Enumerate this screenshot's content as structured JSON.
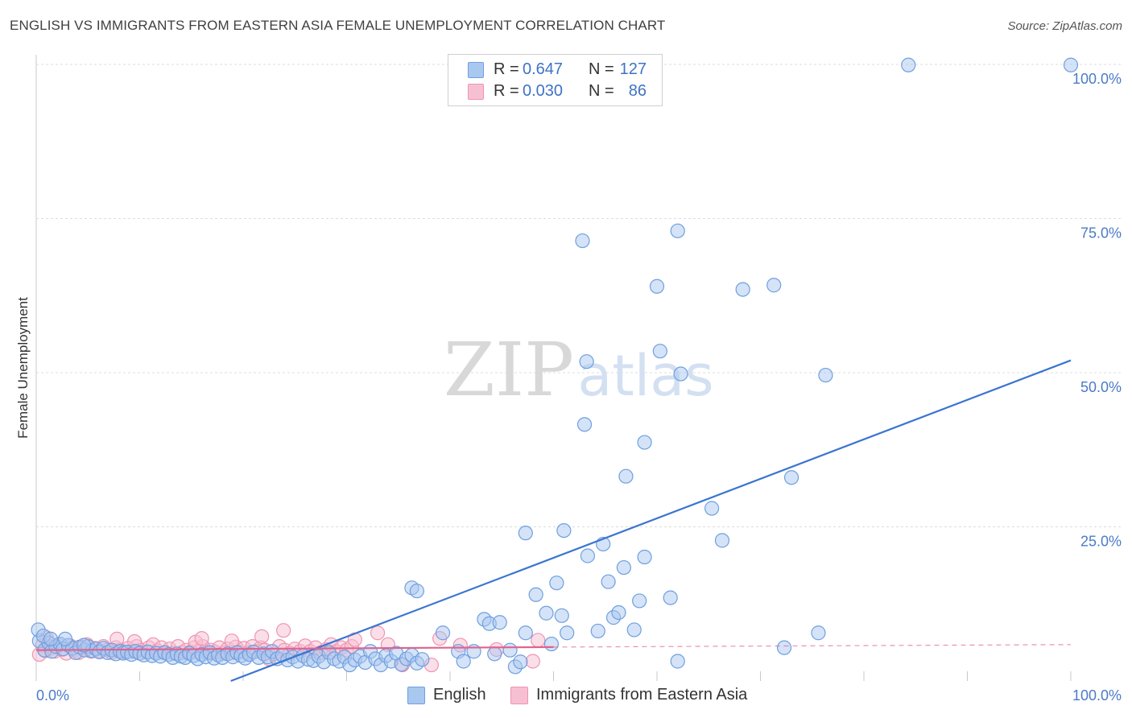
{
  "title": "ENGLISH VS IMMIGRANTS FROM EASTERN ASIA FEMALE UNEMPLOYMENT CORRELATION CHART",
  "source": "Source: ZipAtlas.com",
  "watermark": {
    "zip": "ZIP",
    "atlas": "atlas"
  },
  "legend": {
    "english": {
      "r_label": "R =",
      "r_value": "0.647",
      "n_label": "N =",
      "n_value": "127"
    },
    "immigrants": {
      "r_label": "R =",
      "r_value": "0.030",
      "n_label": "N =",
      "n_value": "86"
    }
  },
  "bottom_legend": {
    "english": "English",
    "immigrants": "Immigrants from Eastern Asia"
  },
  "colors": {
    "english_fill": "#a9c8f0",
    "english_stroke": "#6f9fe0",
    "english_line": "#3a75d0",
    "immigrants_fill": "#f7c0d2",
    "immigrants_stroke": "#ee94b2",
    "immigrants_line": "#e0628e",
    "grid": "#dcdcdc",
    "tick_text": "#4a7bc8"
  },
  "chart_data": {
    "type": "scatter",
    "title": "ENGLISH VS IMMIGRANTS FROM EASTERN ASIA FEMALE UNEMPLOYMENT CORRELATION CHART",
    "xlabel": "",
    "ylabel": "Female Unemployment",
    "xlim": [
      0,
      100
    ],
    "ylim": [
      0,
      100
    ],
    "x_tick_labels": [
      {
        "value": 0,
        "label": "0.0%"
      },
      {
        "value": 100,
        "label": "100.0%"
      }
    ],
    "y_tick_labels": [
      {
        "value": 25,
        "label": "25.0%"
      },
      {
        "value": 50,
        "label": "50.0%"
      },
      {
        "value": 75,
        "label": "75.0%"
      },
      {
        "value": 100,
        "label": "100.0%"
      }
    ],
    "grid": true,
    "series": [
      {
        "name": "English",
        "trendline": {
          "x": [
            11,
            100
          ],
          "y": [
            -5,
            52
          ]
        },
        "points": [
          [
            0.3,
            6.5
          ],
          [
            0.8,
            5.0
          ],
          [
            1.2,
            6.2
          ],
          [
            1.5,
            4.8
          ],
          [
            1.9,
            5.6
          ],
          [
            2.3,
            6.0
          ],
          [
            2.6,
            5.2
          ],
          [
            3.1,
            5.8
          ],
          [
            3.5,
            5.3
          ],
          [
            3.8,
            4.6
          ],
          [
            4.2,
            5.5
          ],
          [
            4.7,
            5.0
          ],
          [
            5.0,
            5.6
          ],
          [
            5.4,
            4.9
          ],
          [
            5.8,
            5.2
          ],
          [
            6.1,
            4.7
          ],
          [
            6.5,
            5.3
          ],
          [
            6.9,
            4.6
          ],
          [
            7.3,
            5.0
          ],
          [
            7.7,
            4.4
          ],
          [
            8.1,
            4.8
          ],
          [
            8.4,
            4.5
          ],
          [
            8.8,
            4.7
          ],
          [
            9.2,
            4.3
          ],
          [
            9.6,
            4.8
          ],
          [
            10.0,
            4.5
          ],
          [
            10.4,
            4.2
          ],
          [
            10.8,
            4.7
          ],
          [
            11.2,
            4.1
          ],
          [
            11.6,
            4.5
          ],
          [
            12.0,
            4.0
          ],
          [
            12.4,
            4.6
          ],
          [
            12.8,
            4.3
          ],
          [
            13.2,
            3.8
          ],
          [
            13.6,
            4.4
          ],
          [
            14.0,
            4.0
          ],
          [
            14.4,
            3.8
          ],
          [
            14.8,
            4.5
          ],
          [
            15.2,
            4.1
          ],
          [
            15.6,
            3.6
          ],
          [
            16.0,
            4.3
          ],
          [
            16.4,
            3.9
          ],
          [
            16.8,
            4.6
          ],
          [
            17.2,
            3.7
          ],
          [
            17.6,
            4.2
          ],
          [
            18.0,
            3.8
          ],
          [
            18.5,
            4.4
          ],
          [
            19.0,
            3.9
          ],
          [
            19.4,
            4.6
          ],
          [
            19.8,
            4.1
          ],
          [
            20.2,
            3.7
          ],
          [
            20.6,
            4.3
          ],
          [
            21.0,
            4.7
          ],
          [
            21.5,
            3.8
          ],
          [
            22.0,
            4.4
          ],
          [
            22.4,
            3.9
          ],
          [
            22.8,
            4.8
          ],
          [
            23.3,
            3.6
          ],
          [
            23.8,
            4.2
          ],
          [
            24.3,
            3.4
          ],
          [
            24.8,
            3.9
          ],
          [
            25.3,
            3.2
          ],
          [
            25.8,
            4.1
          ],
          [
            26.3,
            3.5
          ],
          [
            26.8,
            3.3
          ],
          [
            27.3,
            4.0
          ],
          [
            27.8,
            3.1
          ],
          [
            28.3,
            4.6
          ],
          [
            28.8,
            3.6
          ],
          [
            29.3,
            3.2
          ],
          [
            29.8,
            3.9
          ],
          [
            30.3,
            2.6
          ],
          [
            30.8,
            3.4
          ],
          [
            31.3,
            4.0
          ],
          [
            31.8,
            3.0
          ],
          [
            32.3,
            4.8
          ],
          [
            32.8,
            3.6
          ],
          [
            33.3,
            2.6
          ],
          [
            33.8,
            4.1
          ],
          [
            34.3,
            3.2
          ],
          [
            34.8,
            4.5
          ],
          [
            35.3,
            2.7
          ],
          [
            35.8,
            3.6
          ],
          [
            36.3,
            4.2
          ],
          [
            36.8,
            2.9
          ],
          [
            37.3,
            3.5
          ],
          [
            0.2,
            8.3
          ],
          [
            0.7,
            7.3
          ],
          [
            1.4,
            6.8
          ],
          [
            2.8,
            6.8
          ],
          [
            4.6,
            5.8
          ],
          [
            36.3,
            15.1
          ],
          [
            36.8,
            14.6
          ],
          [
            39.3,
            7.8
          ],
          [
            40.8,
            4.8
          ],
          [
            41.3,
            3.2
          ],
          [
            42.3,
            4.8
          ],
          [
            43.3,
            10.0
          ],
          [
            43.8,
            9.3
          ],
          [
            44.3,
            4.4
          ],
          [
            44.8,
            9.5
          ],
          [
            45.8,
            5.0
          ],
          [
            46.3,
            2.3
          ],
          [
            46.8,
            3.1
          ],
          [
            47.3,
            7.8
          ],
          [
            48.3,
            14.0
          ],
          [
            49.3,
            11.0
          ],
          [
            49.8,
            6.0
          ],
          [
            50.3,
            15.9
          ],
          [
            50.8,
            10.6
          ],
          [
            51.3,
            7.8
          ],
          [
            53.3,
            20.3
          ],
          [
            54.3,
            8.1
          ],
          [
            55.3,
            16.1
          ],
          [
            55.8,
            10.3
          ],
          [
            56.3,
            11.1
          ],
          [
            57.8,
            8.3
          ],
          [
            58.3,
            13.0
          ],
          [
            58.8,
            20.1
          ],
          [
            56.8,
            18.4
          ],
          [
            54.8,
            22.2
          ],
          [
            47.3,
            24.0
          ],
          [
            51.0,
            24.4
          ],
          [
            57.0,
            33.2
          ],
          [
            58.8,
            38.7
          ],
          [
            60.0,
            64.0
          ],
          [
            53.0,
            41.6
          ],
          [
            53.2,
            51.8
          ],
          [
            52.8,
            71.4
          ],
          [
            60.3,
            53.5
          ],
          [
            62.3,
            49.8
          ],
          [
            62.0,
            73.0
          ],
          [
            61.3,
            13.5
          ],
          [
            62.0,
            3.2
          ],
          [
            65.3,
            28.0
          ],
          [
            66.3,
            22.8
          ],
          [
            68.3,
            63.5
          ],
          [
            71.3,
            64.2
          ],
          [
            73.0,
            33.0
          ],
          [
            72.3,
            5.4
          ],
          [
            76.3,
            49.6
          ],
          [
            75.6,
            7.8
          ],
          [
            84.3,
            99.9
          ],
          [
            100.0,
            99.9
          ]
        ]
      },
      {
        "name": "Immigrants from Eastern Asia",
        "trendline": {
          "x": [
            0,
            50
          ],
          "y": [
            5.0,
            5.5
          ]
        },
        "trendline_dashed_extension": {
          "x": [
            50,
            100
          ],
          "y": [
            5.5,
            5.9
          ]
        },
        "points": [
          [
            0.3,
            4.3
          ],
          [
            0.6,
            5.8
          ],
          [
            0.9,
            4.9
          ],
          [
            1.2,
            6.1
          ],
          [
            1.5,
            5.3
          ],
          [
            1.8,
            4.8
          ],
          [
            2.1,
            5.9
          ],
          [
            2.5,
            5.1
          ],
          [
            2.9,
            4.5
          ],
          [
            3.3,
            5.7
          ],
          [
            3.7,
            5.0
          ],
          [
            4.1,
            4.6
          ],
          [
            4.5,
            5.4
          ],
          [
            4.9,
            5.9
          ],
          [
            5.3,
            4.8
          ],
          [
            5.7,
            5.3
          ],
          [
            6.1,
            4.9
          ],
          [
            6.5,
            5.6
          ],
          [
            6.9,
            5.0
          ],
          [
            7.3,
            4.6
          ],
          [
            7.7,
            5.4
          ],
          [
            8.1,
            5.0
          ],
          [
            8.5,
            4.7
          ],
          [
            8.9,
            5.3
          ],
          [
            9.3,
            4.8
          ],
          [
            9.7,
            5.6
          ],
          [
            10.1,
            5.0
          ],
          [
            10.5,
            4.7
          ],
          [
            10.9,
            5.4
          ],
          [
            11.3,
            5.9
          ],
          [
            11.7,
            4.9
          ],
          [
            12.1,
            5.4
          ],
          [
            12.5,
            4.6
          ],
          [
            12.9,
            5.2
          ],
          [
            13.3,
            4.5
          ],
          [
            13.7,
            5.6
          ],
          [
            14.1,
            4.6
          ],
          [
            14.5,
            5.0
          ],
          [
            14.9,
            4.7
          ],
          [
            15.3,
            5.4
          ],
          [
            15.7,
            4.8
          ],
          [
            16.1,
            5.6
          ],
          [
            16.5,
            4.6
          ],
          [
            16.9,
            5.0
          ],
          [
            17.3,
            4.7
          ],
          [
            17.7,
            5.4
          ],
          [
            18.1,
            4.5
          ],
          [
            18.5,
            5.2
          ],
          [
            18.9,
            4.6
          ],
          [
            19.3,
            5.5
          ],
          [
            19.7,
            4.7
          ],
          [
            20.1,
            5.3
          ],
          [
            20.5,
            4.6
          ],
          [
            20.9,
            5.6
          ],
          [
            21.3,
            4.8
          ],
          [
            21.7,
            5.4
          ],
          [
            22.1,
            5.0
          ],
          [
            22.5,
            3.6
          ],
          [
            23.0,
            4.4
          ],
          [
            23.5,
            5.6
          ],
          [
            24.0,
            5.0
          ],
          [
            24.5,
            4.5
          ],
          [
            25.0,
            5.2
          ],
          [
            25.5,
            4.8
          ],
          [
            26.0,
            5.7
          ],
          [
            26.5,
            4.8
          ],
          [
            27.0,
            5.4
          ],
          [
            27.5,
            4.6
          ],
          [
            28.0,
            5.1
          ],
          [
            28.5,
            5.9
          ],
          [
            29.0,
            4.8
          ],
          [
            29.5,
            5.4
          ],
          [
            30.0,
            5.0
          ],
          [
            30.5,
            5.6
          ],
          [
            1.0,
            7.0
          ],
          [
            7.8,
            6.8
          ],
          [
            9.5,
            6.4
          ],
          [
            15.4,
            6.3
          ],
          [
            16.0,
            6.9
          ],
          [
            18.9,
            6.5
          ],
          [
            21.8,
            7.2
          ],
          [
            23.9,
            8.2
          ],
          [
            30.8,
            6.7
          ],
          [
            33.0,
            7.8
          ],
          [
            34.0,
            5.9
          ],
          [
            35.4,
            2.6
          ],
          [
            38.2,
            2.6
          ],
          [
            39.0,
            6.9
          ],
          [
            41.0,
            5.8
          ],
          [
            44.5,
            5.1
          ],
          [
            48.5,
            6.6
          ],
          [
            48.0,
            3.2
          ]
        ]
      }
    ]
  }
}
